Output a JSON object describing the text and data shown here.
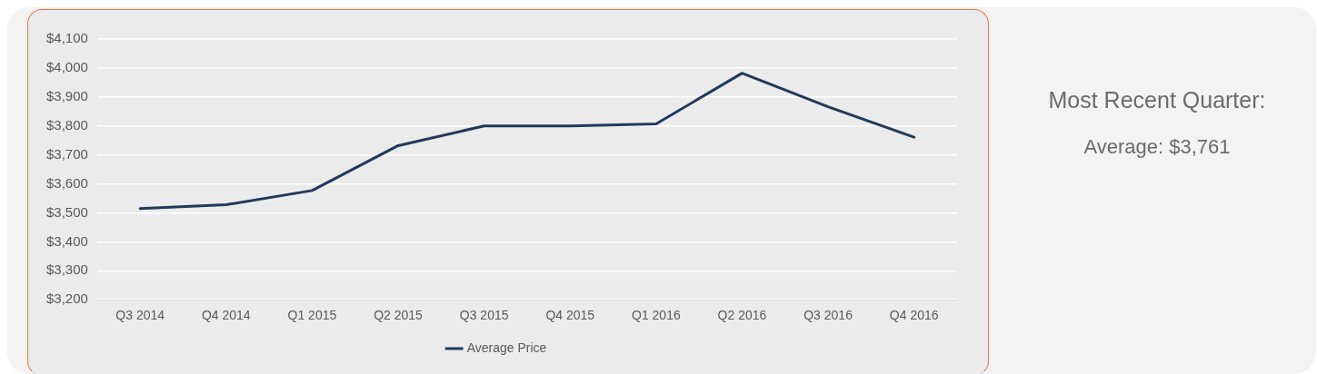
{
  "chart_data": [
    {
      "type": "line",
      "categories": [
        "Q3 2014",
        "Q4 2014",
        "Q1 2015",
        "Q2 2015",
        "Q3 2015",
        "Q4 2015",
        "Q1 2016",
        "Q2 2016",
        "Q3 2016",
        "Q4 2016"
      ],
      "series": [
        {
          "name": "Average Price",
          "color": "#203a5c",
          "values": [
            3515,
            3528,
            3577,
            3732,
            3800,
            3800,
            3807,
            3982,
            3866,
            3761
          ]
        }
      ],
      "ylim": [
        3200,
        4100
      ],
      "yticks": [
        {
          "value": 3200,
          "label": "$3,200"
        },
        {
          "value": 3300,
          "label": "$3,300"
        },
        {
          "value": 3400,
          "label": "$3,400"
        },
        {
          "value": 3500,
          "label": "$3,500"
        },
        {
          "value": 3600,
          "label": "$3,600"
        },
        {
          "value": 3700,
          "label": "$3,700"
        },
        {
          "value": 3800,
          "label": "$3,800"
        },
        {
          "value": 3900,
          "label": "$3,900"
        },
        {
          "value": 4000,
          "label": "$4,000"
        },
        {
          "value": 4100,
          "label": "$4,100"
        }
      ],
      "grid": "y",
      "legend": "bottom",
      "marker": "none"
    },
    {
      "type": "other",
      "title": "Most Recent Quarter:",
      "annotations": [
        "Average: $3,761"
      ]
    }
  ]
}
